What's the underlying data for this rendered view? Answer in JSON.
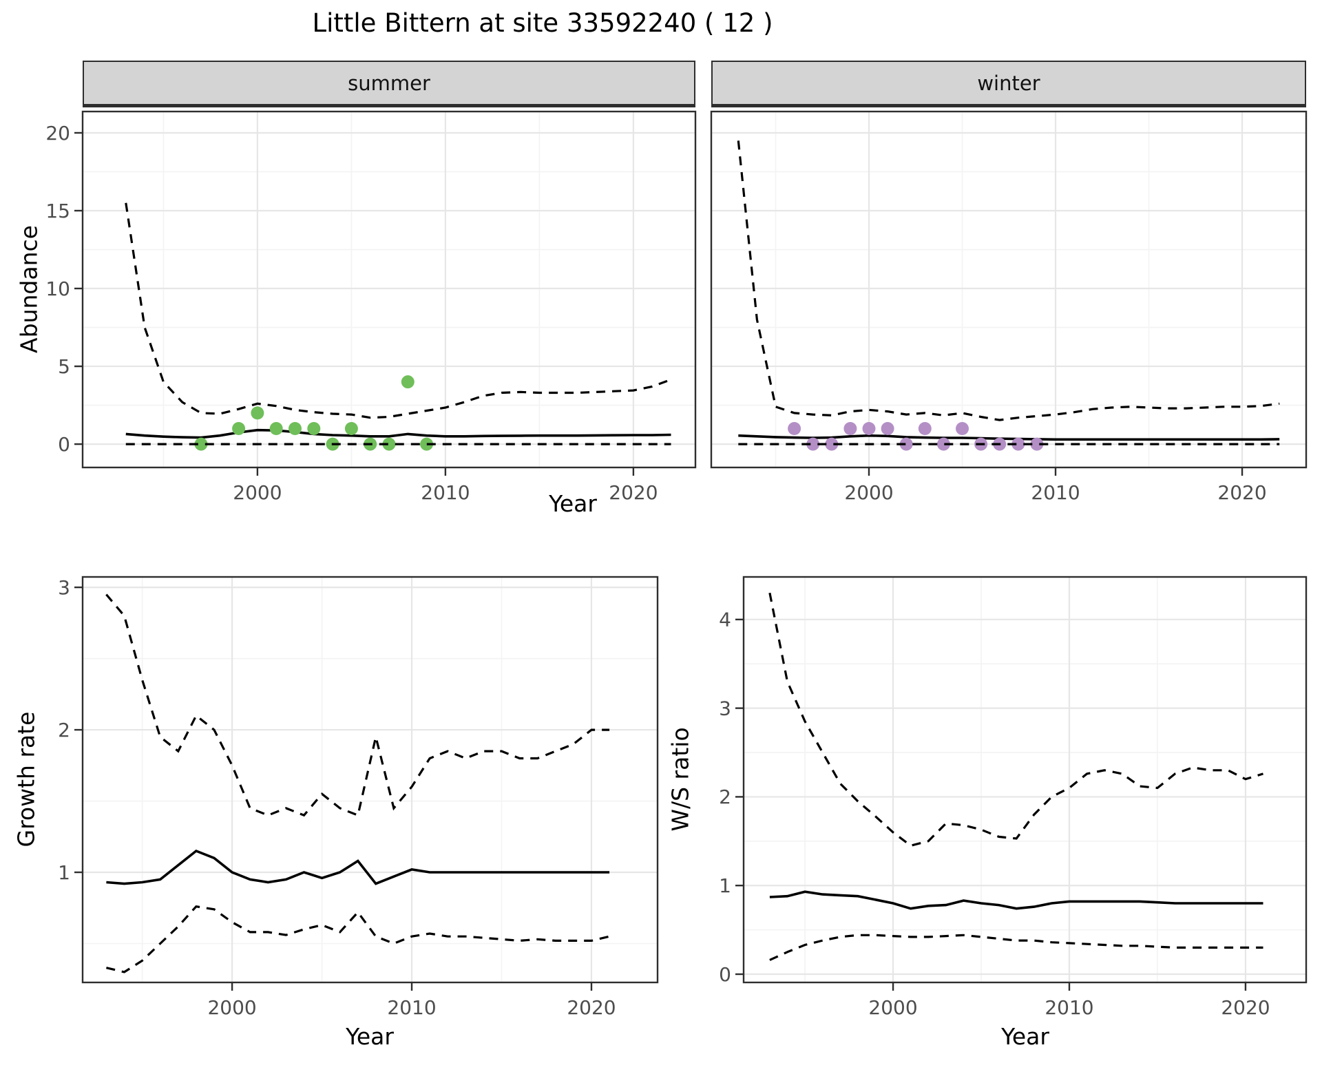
{
  "title": "Little Bittern at site 33592240 ( 12 )",
  "facets": [
    {
      "label": "summer"
    },
    {
      "label": "winter"
    }
  ],
  "axis_titles": {
    "abundance": "Abundance",
    "year_top": "Year",
    "growth": "Growth rate",
    "year_growth": "Year",
    "ws": "W/S ratio",
    "year_ws": "Year"
  },
  "colors": {
    "summer_point": "#6FBE59",
    "winter_point": "#B48FC6",
    "line": "#000000",
    "grid_major": "#e6e6e6",
    "grid_minor": "#f3f3f3",
    "panel_border": "#2e2e2e",
    "strip_bg": "#d4d4d4",
    "tick_label": "#4d4d4d"
  },
  "chart_data": [
    {
      "id": "summer",
      "type": "line",
      "facet": "summer",
      "xlabel": "Year",
      "ylabel": "Abundance",
      "x": [
        1993,
        1994,
        1995,
        1996,
        1997,
        1998,
        1999,
        2000,
        2001,
        2002,
        2003,
        2004,
        2005,
        2006,
        2007,
        2008,
        2009,
        2010,
        2011,
        2012,
        2013,
        2014,
        2015,
        2016,
        2017,
        2018,
        2019,
        2020,
        2021,
        2022
      ],
      "series": [
        {
          "name": "upper_ci",
          "style": "dashed",
          "values": [
            15.5,
            7.5,
            4.0,
            2.7,
            2.0,
            1.95,
            2.25,
            2.6,
            2.45,
            2.2,
            2.05,
            1.95,
            1.9,
            1.7,
            1.75,
            1.95,
            2.15,
            2.35,
            2.7,
            3.1,
            3.3,
            3.35,
            3.3,
            3.3,
            3.3,
            3.35,
            3.4,
            3.45,
            3.7,
            4.15
          ]
        },
        {
          "name": "median",
          "style": "solid",
          "values": [
            0.65,
            0.55,
            0.48,
            0.44,
            0.42,
            0.55,
            0.75,
            0.9,
            0.88,
            0.78,
            0.65,
            0.58,
            0.55,
            0.5,
            0.5,
            0.65,
            0.55,
            0.5,
            0.5,
            0.52,
            0.53,
            0.54,
            0.55,
            0.55,
            0.55,
            0.56,
            0.57,
            0.58,
            0.58,
            0.6
          ]
        },
        {
          "name": "lower_ci",
          "style": "dashed",
          "values": [
            0,
            0,
            0,
            0,
            0,
            0,
            0,
            0,
            0,
            0,
            0,
            0,
            0,
            0,
            0,
            0,
            0,
            0,
            0,
            0,
            0,
            0,
            0,
            0,
            0,
            0,
            0,
            0,
            0,
            0
          ]
        }
      ],
      "points": {
        "name": "observed_counts_summer",
        "color_key": "summer_point",
        "data": [
          [
            1997,
            0
          ],
          [
            1999,
            1
          ],
          [
            2000,
            2
          ],
          [
            2001,
            1
          ],
          [
            2002,
            1
          ],
          [
            2003,
            1
          ],
          [
            2004,
            0
          ],
          [
            2005,
            1
          ],
          [
            2006,
            0
          ],
          [
            2007,
            0
          ],
          [
            2008,
            4
          ],
          [
            2009,
            0
          ]
        ]
      },
      "xlim": [
        1990.7,
        2023.3
      ],
      "ylim": [
        -1.5,
        21.37
      ],
      "xticks": [
        2000,
        2010,
        2020
      ],
      "xminor": [
        1995,
        2005,
        2015
      ],
      "yticks": [
        0,
        5,
        10,
        15,
        20
      ],
      "yminor": [
        2.5,
        7.5,
        12.5,
        17.5
      ]
    },
    {
      "id": "winter",
      "type": "line",
      "facet": "winter",
      "xlabel": "Year",
      "ylabel": "Abundance",
      "x": [
        1993,
        1994,
        1995,
        1996,
        1997,
        1998,
        1999,
        2000,
        2001,
        2002,
        2003,
        2004,
        2005,
        2006,
        2007,
        2008,
        2009,
        2010,
        2011,
        2012,
        2013,
        2014,
        2015,
        2016,
        2017,
        2018,
        2019,
        2020,
        2021,
        2022
      ],
      "series": [
        {
          "name": "upper_ci",
          "style": "dashed",
          "values": [
            19.5,
            8.0,
            2.4,
            2.0,
            1.9,
            1.85,
            2.1,
            2.2,
            2.1,
            1.9,
            2.0,
            1.85,
            2.0,
            1.75,
            1.55,
            1.7,
            1.8,
            1.9,
            2.05,
            2.25,
            2.35,
            2.4,
            2.35,
            2.3,
            2.3,
            2.35,
            2.4,
            2.4,
            2.45,
            2.6
          ]
        },
        {
          "name": "median",
          "style": "solid",
          "values": [
            0.55,
            0.5,
            0.45,
            0.42,
            0.4,
            0.42,
            0.5,
            0.55,
            0.52,
            0.45,
            0.42,
            0.4,
            0.4,
            0.38,
            0.35,
            0.33,
            0.32,
            0.3,
            0.3,
            0.3,
            0.3,
            0.3,
            0.3,
            0.3,
            0.3,
            0.3,
            0.3,
            0.3,
            0.3,
            0.32
          ]
        },
        {
          "name": "lower_ci",
          "style": "dashed",
          "values": [
            0,
            0,
            0,
            0,
            0,
            0,
            0,
            0,
            0,
            0,
            0,
            0,
            0,
            0,
            0,
            0,
            0,
            0,
            0,
            0,
            0,
            0,
            0,
            0,
            0,
            0,
            0,
            0,
            0,
            0
          ]
        }
      ],
      "points": {
        "name": "observed_counts_winter",
        "color_key": "winter_point",
        "data": [
          [
            1996,
            1
          ],
          [
            1997,
            0
          ],
          [
            1998,
            0
          ],
          [
            1999,
            1
          ],
          [
            2000,
            1
          ],
          [
            2001,
            1
          ],
          [
            2002,
            0
          ],
          [
            2003,
            1
          ],
          [
            2004,
            0
          ],
          [
            2005,
            1
          ],
          [
            2006,
            0
          ],
          [
            2007,
            0
          ],
          [
            2008,
            0
          ],
          [
            2009,
            0
          ]
        ]
      },
      "xlim": [
        1991.55,
        2023.43
      ],
      "ylim": [
        -1.5,
        21.37
      ],
      "xticks": [
        2000,
        2010,
        2020
      ],
      "xminor": [
        1995,
        2005,
        2015
      ],
      "yticks": [
        0,
        5,
        10,
        15,
        20
      ],
      "yminor": [
        2.5,
        7.5,
        12.5,
        17.5
      ]
    },
    {
      "id": "growth",
      "type": "line",
      "xlabel": "Year",
      "ylabel": "Growth rate",
      "x": [
        1993,
        1994,
        1995,
        1996,
        1997,
        1998,
        1999,
        2000,
        2001,
        2002,
        2003,
        2004,
        2005,
        2006,
        2007,
        2008,
        2009,
        2010,
        2011,
        2012,
        2013,
        2014,
        2015,
        2016,
        2017,
        2018,
        2019,
        2020,
        2021
      ],
      "series": [
        {
          "name": "upper_ci",
          "style": "dashed",
          "values": [
            2.95,
            2.8,
            2.35,
            1.95,
            1.85,
            2.1,
            2.0,
            1.75,
            1.45,
            1.4,
            1.45,
            1.4,
            1.55,
            1.45,
            1.4,
            1.95,
            1.45,
            1.6,
            1.8,
            1.85,
            1.8,
            1.85,
            1.85,
            1.8,
            1.8,
            1.85,
            1.9,
            2.0,
            2.0
          ]
        },
        {
          "name": "median",
          "style": "solid",
          "values": [
            0.93,
            0.92,
            0.93,
            0.95,
            1.05,
            1.15,
            1.1,
            1.0,
            0.95,
            0.93,
            0.95,
            1.0,
            0.96,
            1.0,
            1.08,
            0.92,
            0.97,
            1.02,
            1.0,
            1.0,
            1.0,
            1.0,
            1.0,
            1.0,
            1.0,
            1.0,
            1.0,
            1.0,
            1.0
          ]
        },
        {
          "name": "lower_ci",
          "style": "dashed",
          "values": [
            0.33,
            0.3,
            0.38,
            0.5,
            0.62,
            0.76,
            0.74,
            0.65,
            0.58,
            0.58,
            0.56,
            0.6,
            0.63,
            0.58,
            0.72,
            0.55,
            0.5,
            0.55,
            0.57,
            0.55,
            0.55,
            0.54,
            0.53,
            0.52,
            0.53,
            0.52,
            0.52,
            0.52,
            0.55
          ]
        }
      ],
      "points": null,
      "xlim": [
        1991.68,
        2023.68
      ],
      "ylim": [
        0.227,
        3.073
      ],
      "xticks": [
        2000,
        2010,
        2020
      ],
      "xminor": [
        1995,
        2005,
        2015
      ],
      "yticks": [
        1,
        2,
        3
      ],
      "yminor": [
        0.5,
        1.5,
        2.5
      ]
    },
    {
      "id": "ws",
      "type": "line",
      "xlabel": "Year",
      "ylabel": "W/S ratio",
      "x": [
        1993,
        1994,
        1995,
        1996,
        1997,
        1998,
        1999,
        2000,
        2001,
        2002,
        2003,
        2004,
        2005,
        2006,
        2007,
        2008,
        2009,
        2010,
        2011,
        2012,
        2013,
        2014,
        2015,
        2016,
        2017,
        2018,
        2019,
        2020,
        2021
      ],
      "series": [
        {
          "name": "upper_ci",
          "style": "dashed",
          "values": [
            4.3,
            3.3,
            2.85,
            2.5,
            2.15,
            1.95,
            1.78,
            1.6,
            1.45,
            1.5,
            1.7,
            1.68,
            1.63,
            1.55,
            1.53,
            1.8,
            2.0,
            2.1,
            2.26,
            2.3,
            2.26,
            2.12,
            2.1,
            2.26,
            2.33,
            2.3,
            2.3,
            2.2,
            2.26
          ]
        },
        {
          "name": "median",
          "style": "solid",
          "values": [
            0.87,
            0.88,
            0.93,
            0.9,
            0.89,
            0.88,
            0.84,
            0.8,
            0.74,
            0.77,
            0.78,
            0.83,
            0.8,
            0.78,
            0.74,
            0.76,
            0.8,
            0.82,
            0.82,
            0.82,
            0.82,
            0.82,
            0.81,
            0.8,
            0.8,
            0.8,
            0.8,
            0.8,
            0.8
          ]
        },
        {
          "name": "lower_ci",
          "style": "dashed",
          "values": [
            0.16,
            0.25,
            0.33,
            0.38,
            0.42,
            0.44,
            0.44,
            0.43,
            0.42,
            0.42,
            0.43,
            0.44,
            0.42,
            0.4,
            0.38,
            0.38,
            0.36,
            0.35,
            0.34,
            0.33,
            0.32,
            0.32,
            0.31,
            0.3,
            0.3,
            0.3,
            0.3,
            0.3,
            0.3
          ]
        }
      ],
      "points": null,
      "xlim": [
        1991.52,
        2023.44
      ],
      "ylim": [
        -0.093,
        4.48
      ],
      "xticks": [
        2000,
        2010,
        2020
      ],
      "xminor": [
        1995,
        2005,
        2015
      ],
      "yticks": [
        0,
        1,
        2,
        3,
        4
      ],
      "yminor": [
        0.5,
        1.5,
        2.5,
        3.5
      ]
    }
  ]
}
